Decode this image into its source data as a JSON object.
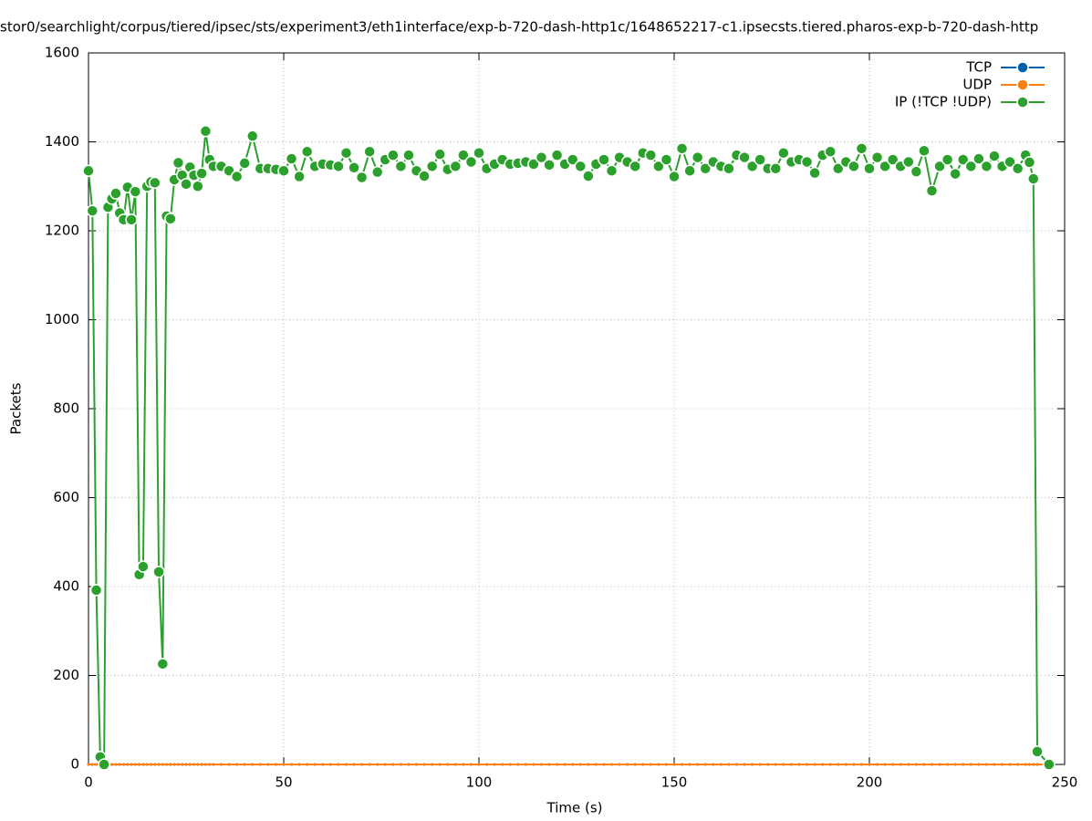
{
  "chart_data": {
    "type": "line",
    "title": "stor0/searchlight/corpus/tiered/ipsec/sts/experiment3/eth1interface/exp-b-720-dash-http1c/1648652217-c1.ipsecsts.tiered.pharos-exp-b-720-dash-http",
    "x_label": "Time (s)",
    "y_label": "Packets",
    "xlim": [
      0,
      250
    ],
    "xticks": [
      0,
      50,
      100,
      150,
      200,
      250
    ],
    "ylim": [
      0,
      1600
    ],
    "yticks": [
      0,
      200,
      400,
      600,
      800,
      1000,
      1200,
      1400,
      1600
    ],
    "grid": true,
    "legend": "top-right",
    "x": [
      0,
      1,
      2,
      3,
      4,
      5,
      6,
      7,
      8,
      9,
      10,
      11,
      12,
      13,
      14,
      15,
      16,
      17,
      18,
      19,
      20,
      21,
      22,
      23,
      24,
      25,
      26,
      27,
      28,
      29,
      30,
      31,
      32,
      34,
      36,
      38,
      40,
      42,
      44,
      46,
      48,
      50,
      52,
      54,
      56,
      58,
      60,
      62,
      64,
      66,
      68,
      70,
      72,
      74,
      76,
      78,
      80,
      82,
      84,
      86,
      88,
      90,
      92,
      94,
      96,
      98,
      100,
      102,
      104,
      106,
      108,
      110,
      112,
      114,
      116,
      118,
      120,
      122,
      124,
      126,
      128,
      130,
      132,
      134,
      136,
      138,
      140,
      142,
      144,
      146,
      148,
      150,
      152,
      154,
      156,
      158,
      160,
      162,
      164,
      166,
      168,
      170,
      172,
      174,
      176,
      178,
      180,
      182,
      184,
      186,
      188,
      190,
      192,
      194,
      196,
      198,
      200,
      202,
      204,
      206,
      208,
      210,
      212,
      214,
      216,
      218,
      220,
      222,
      224,
      226,
      228,
      230,
      232,
      234,
      236,
      238,
      240,
      241,
      242,
      243,
      246
    ],
    "series": [
      {
        "name": "TCP",
        "color": "#0060ad",
        "values": [
          0,
          0,
          0,
          0,
          0,
          0,
          0,
          0,
          0,
          0,
          0,
          0,
          0,
          0,
          0,
          0,
          0,
          0,
          0,
          0,
          0,
          0,
          0,
          0,
          0,
          0,
          0,
          0,
          0,
          0,
          0,
          0,
          0,
          0,
          0,
          0,
          0,
          0,
          0,
          0,
          0,
          0,
          0,
          0,
          0,
          0,
          0,
          0,
          0,
          0,
          0,
          0,
          0,
          0,
          0,
          0,
          0,
          0,
          0,
          0,
          0,
          0,
          0,
          0,
          0,
          0,
          0,
          0,
          0,
          0,
          0,
          0,
          0,
          0,
          0,
          0,
          0,
          0,
          0,
          0,
          0,
          0,
          0,
          0,
          0,
          0,
          0,
          0,
          0,
          0,
          0,
          0,
          0,
          0,
          0,
          0,
          0,
          0,
          0,
          0,
          0,
          0,
          0,
          0,
          0,
          0,
          0,
          0,
          0,
          0,
          0,
          0,
          0,
          0,
          0,
          0,
          0,
          0,
          0,
          0,
          0,
          0,
          0,
          0,
          0,
          0,
          0,
          0,
          0,
          0,
          0,
          0,
          0,
          0,
          0,
          0,
          0,
          0,
          0,
          0,
          0
        ]
      },
      {
        "name": "UDP",
        "color": "#ff7f0e",
        "values": [
          0,
          0,
          0,
          0,
          0,
          0,
          0,
          0,
          0,
          0,
          0,
          0,
          0,
          0,
          0,
          0,
          0,
          0,
          0,
          0,
          0,
          0,
          0,
          0,
          0,
          0,
          0,
          0,
          0,
          0,
          0,
          0,
          0,
          0,
          0,
          0,
          0,
          0,
          0,
          0,
          0,
          0,
          0,
          0,
          0,
          0,
          0,
          0,
          0,
          0,
          0,
          0,
          0,
          0,
          0,
          0,
          0,
          0,
          0,
          0,
          0,
          0,
          0,
          0,
          0,
          0,
          0,
          0,
          0,
          0,
          0,
          0,
          0,
          0,
          0,
          0,
          0,
          0,
          0,
          0,
          0,
          0,
          0,
          0,
          0,
          0,
          0,
          0,
          0,
          0,
          0,
          0,
          0,
          0,
          0,
          0,
          0,
          0,
          0,
          0,
          0,
          0,
          0,
          0,
          0,
          0,
          0,
          0,
          0,
          0,
          0,
          0,
          0,
          0,
          0,
          0,
          0,
          0,
          0,
          0,
          0,
          0,
          0,
          0,
          0,
          0,
          0,
          0,
          0,
          0,
          0,
          0,
          0,
          0,
          0,
          0,
          0,
          0,
          0,
          0,
          0
        ]
      },
      {
        "name": "IP (!TCP  !UDP)",
        "color": "#2ca02c",
        "values": [
          1335,
          1245,
          392,
          17,
          0,
          1253,
          1272,
          1284,
          1240,
          1225,
          1298,
          1225,
          1288,
          427,
          445,
          1300,
          1310,
          1308,
          433,
          226,
          1233,
          1227,
          1315,
          1353,
          1325,
          1305,
          1343,
          1325,
          1300,
          1329,
          1424,
          1360,
          1345,
          1345,
          1335,
          1322,
          1352,
          1413,
          1340,
          1340,
          1338,
          1335,
          1362,
          1322,
          1378,
          1345,
          1350,
          1348,
          1345,
          1375,
          1342,
          1320,
          1378,
          1332,
          1360,
          1370,
          1345,
          1370,
          1335,
          1323,
          1345,
          1372,
          1338,
          1345,
          1370,
          1355,
          1375,
          1340,
          1350,
          1360,
          1350,
          1352,
          1355,
          1350,
          1365,
          1348,
          1370,
          1350,
          1360,
          1345,
          1323,
          1350,
          1360,
          1335,
          1365,
          1355,
          1345,
          1375,
          1370,
          1345,
          1360,
          1322,
          1385,
          1335,
          1365,
          1340,
          1355,
          1345,
          1340,
          1370,
          1365,
          1345,
          1360,
          1340,
          1340,
          1375,
          1355,
          1360,
          1355,
          1330,
          1370,
          1378,
          1340,
          1355,
          1345,
          1385,
          1340,
          1365,
          1345,
          1360,
          1345,
          1355,
          1333,
          1380,
          1290,
          1345,
          1360,
          1328,
          1360,
          1345,
          1362,
          1345,
          1368,
          1345,
          1355,
          1340,
          1370,
          1354,
          1317,
          29,
          0
        ]
      }
    ]
  }
}
